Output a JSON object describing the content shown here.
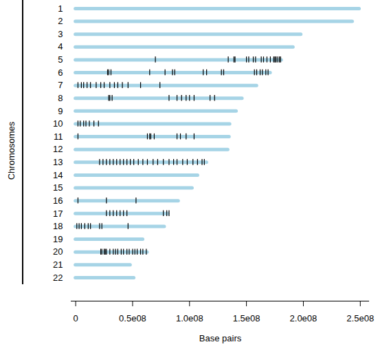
{
  "chart_data": {
    "type": "chromosome_map",
    "x_label": "Base pairs",
    "y_label": "Chromosomes",
    "categories": [
      "1",
      "2",
      "3",
      "4",
      "5",
      "6",
      "7",
      "8",
      "9",
      "10",
      "11",
      "12",
      "13",
      "14",
      "15",
      "16",
      "17",
      "18",
      "19",
      "20",
      "21",
      "22"
    ],
    "series": [
      {
        "type": "bar",
        "color": "#a6d4e6",
        "values": [
          249250621,
          243199373,
          198022430,
          191154276,
          180915260,
          171115067,
          159138663,
          146364022,
          141213431,
          135534747,
          135006516,
          133851895,
          115169878,
          107349540,
          102531392,
          90354753,
          81195210,
          78077248,
          59128983,
          63025520,
          48129895,
          51304566
        ]
      },
      {
        "type": "tick",
        "color": "#000000",
        "values": [
          [],
          [],
          [],
          [],
          [
            70000000,
            134000000,
            139000000,
            140000000,
            150000000,
            152000000,
            156000000,
            158000000,
            163000000,
            165000000,
            168000000,
            171000000,
            174000000,
            175000000,
            176000000,
            177500000,
            179000000,
            180000000
          ],
          [
            28000000,
            29000000,
            31000000,
            65000000,
            78500000,
            85000000,
            87000000,
            112000000,
            115000000,
            128000000,
            130000000,
            157000000,
            159000000,
            162000000,
            164000000,
            167000000,
            169000000
          ],
          [
            2000000,
            5000000,
            7000000,
            10000000,
            13000000,
            18000000,
            22000000,
            25000000,
            30000000,
            34000000,
            37000000,
            41000000,
            46000000,
            57000000,
            74000000
          ],
          [
            29000000,
            30000000,
            32000000,
            82000000,
            89000000,
            93000000,
            97000000,
            100000000,
            104000000,
            118000000,
            122000000
          ],
          [],
          [
            2000000,
            4000000,
            7000000,
            9000000,
            12000000,
            16000000,
            20000000
          ],
          [
            2000000,
            63000000,
            65000000,
            66000000,
            69000000,
            89000000,
            92000000,
            97000000,
            104000000
          ],
          [],
          [
            21000000,
            24000000,
            27000000,
            30000000,
            33000000,
            36000000,
            39000000,
            42000000,
            45000000,
            48000000,
            51000000,
            55000000,
            59000000,
            63000000,
            68000000,
            72000000,
            77000000,
            82000000,
            86000000,
            89000000,
            94000000,
            98000000,
            103000000,
            107000000,
            111000000,
            113000000
          ],
          [],
          [],
          [
            2000000,
            27000000,
            53000000
          ],
          [
            27000000,
            30000000,
            33000000,
            36000000,
            39000000,
            42000000,
            45000000,
            77000000,
            80000000,
            82000000
          ],
          [
            1000000,
            3000000,
            5000000,
            8000000,
            11000000,
            13000000,
            21000000,
            23000000,
            46000000
          ],
          [],
          [
            22000000,
            23000000,
            25000000,
            26000000,
            27000000,
            30000000,
            33000000,
            35000000,
            37000000,
            40000000,
            42000000,
            45000000,
            47000000,
            50000000,
            52000000,
            54000000,
            57000000,
            59000000,
            62000000
          ],
          [],
          []
        ]
      }
    ],
    "xlim": [
      -4000000,
      258000000
    ],
    "xticks": [
      0,
      {
        "value": 50000000,
        "label": "0.5e08"
      },
      {
        "value": 100000000,
        "label": "1.0e08"
      },
      {
        "value": 150000000,
        "label": "1.5e08"
      },
      {
        "value": 200000000,
        "label": "2.0e08"
      },
      {
        "value": 250000000,
        "label": "2.5e08"
      }
    ]
  }
}
